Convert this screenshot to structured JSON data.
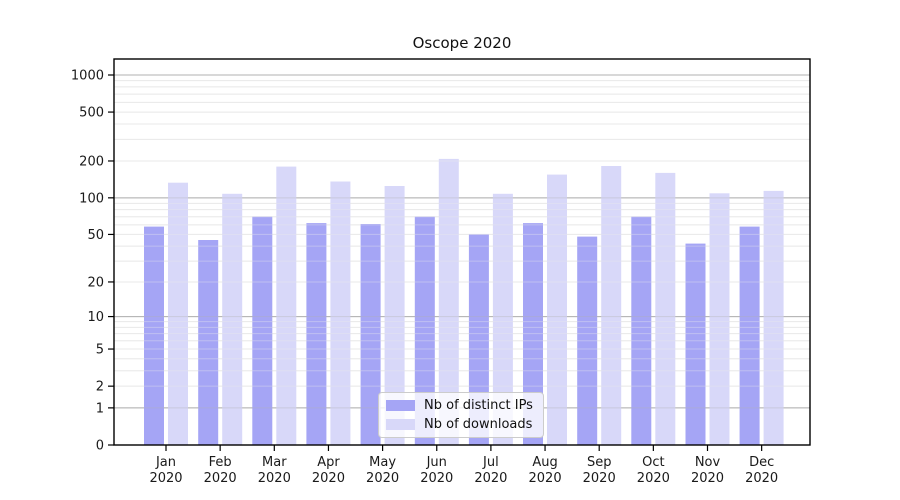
{
  "chart_data": {
    "type": "bar",
    "title": "Oscope 2020",
    "categories": [
      "Jan 2020",
      "Feb 2020",
      "Mar 2020",
      "Apr 2020",
      "May 2020",
      "Jun 2020",
      "Jul 2020",
      "Aug 2020",
      "Sep 2020",
      "Oct 2020",
      "Nov 2020",
      "Dec 2020"
    ],
    "series": [
      {
        "name": "Nb of distinct IPs",
        "color": "#a5a5f5",
        "values": [
          58,
          45,
          70,
          62,
          61,
          70,
          50,
          62,
          48,
          70,
          42,
          58
        ]
      },
      {
        "name": "Nb of downloads",
        "color": "#d8d8f9",
        "values": [
          133,
          108,
          180,
          136,
          125,
          208,
          108,
          155,
          182,
          160,
          109,
          114
        ]
      }
    ],
    "xlabel": "",
    "ylabel": "",
    "yscale": "symlog (position proportional to log10(1+v))",
    "y_tick_labels": [
      0,
      1,
      2,
      5,
      10,
      20,
      50,
      100,
      200,
      500,
      1000
    ],
    "ylim": [
      0,
      1300
    ],
    "grid": "on",
    "grid_major_at": [
      1,
      10,
      100,
      1000
    ],
    "legend_position": "inside-bottom-center",
    "style": {
      "grid_major_color": "#b0b0b0",
      "grid_minor_color": "#e9e9e9",
      "frame_color": "#000000",
      "tick_text_color": "#1a1a1a"
    }
  }
}
